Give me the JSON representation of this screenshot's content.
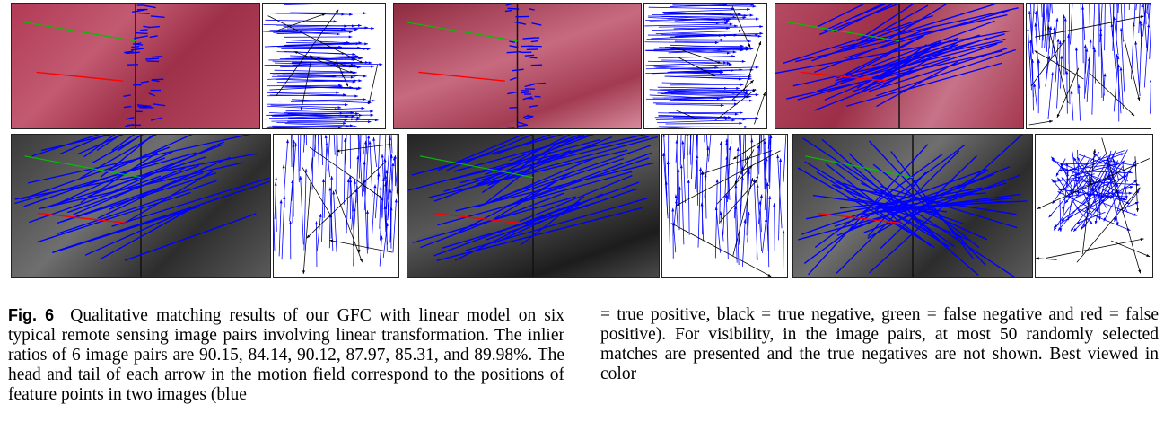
{
  "figure": {
    "label": "Fig. 6",
    "caption_left": "Qualitative matching results of our GFC with linear model on six typical remote sensing image pairs involving linear transformation. The inlier ratios of 6 image pairs are 90.15, 84.14, 90.12, 87.97, 85.31, and 89.98%. The head and tail of each arrow in the motion field correspond to the positions of feature points in two images (blue",
    "caption_right": "= true positive, black = true negative, green = false negative and red = false positive). For visibility, in the image pairs, at most 50 randomly selected matches are presented and the true negatives are not shown. Best viewed in color"
  },
  "colors": {
    "true_positive": "#0000ff",
    "true_negative": "#000000",
    "false_negative": "#00c000",
    "false_positive": "#ff0000"
  },
  "panels": [
    {
      "name": "pair-1",
      "imagery": "infrared",
      "pattern": "vertical-offset"
    },
    {
      "name": "pair-2",
      "imagery": "infrared",
      "pattern": "vertical-offset"
    },
    {
      "name": "pair-3",
      "imagery": "infrared",
      "pattern": "diagonal"
    },
    {
      "name": "pair-4",
      "imagery": "grayscale",
      "pattern": "diagonal"
    },
    {
      "name": "pair-5",
      "imagery": "grayscale",
      "pattern": "diagonal"
    },
    {
      "name": "pair-6",
      "imagery": "grayscale",
      "pattern": "converging"
    }
  ]
}
